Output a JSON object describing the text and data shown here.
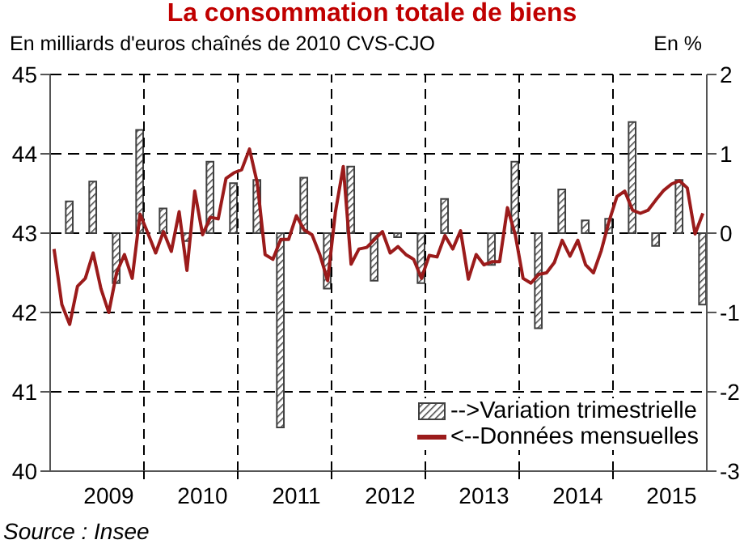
{
  "chart_data": {
    "type": "line",
    "title": "La consommation totale de biens",
    "ylabel": "En milliards d'euros chaînés de 2010 CVS-CJO",
    "y2label": "En %",
    "annotations": [
      "Source : Insee"
    ],
    "xlim": [
      "2009-01-01",
      "2016-01-01"
    ],
    "xticks": [
      {
        "value": "2009-08",
        "label": "2009"
      },
      {
        "value": "2010-08",
        "label": "2010"
      },
      {
        "value": "2011-08",
        "label": "2011"
      },
      {
        "value": "2012-08",
        "label": "2012"
      },
      {
        "value": "2013-08",
        "label": "2013"
      },
      {
        "value": "2014-08",
        "label": "2014"
      },
      {
        "value": "2015-08",
        "label": "2015"
      },
      {
        "value": "2010-01-01",
        "label": null
      },
      {
        "value": "2011-01-01",
        "label": null
      },
      {
        "value": "2012-01-01",
        "label": null
      },
      {
        "value": "2013-01-01",
        "label": null
      },
      {
        "value": "2014-01-01",
        "label": null
      },
      {
        "value": "2015-01-01",
        "label": null
      }
    ],
    "ylim": [
      40,
      45
    ],
    "yticks": [
      40,
      41,
      42,
      43,
      44,
      45
    ],
    "y2lim": [
      -3,
      2
    ],
    "y2ticks": [
      -3,
      -2,
      -1,
      0,
      1,
      2
    ],
    "grid": "y",
    "legend": "bottom right",
    "ref_lines": [
      {
        "axis": "x",
        "value": "2010-01-01",
        "color": "#000000",
        "line_style": "dashed"
      },
      {
        "axis": "x",
        "value": "2011-01-01",
        "color": "#000000",
        "line_style": "dashed"
      },
      {
        "axis": "x",
        "value": "2012-01-01",
        "color": "#000000",
        "line_style": "dashed"
      },
      {
        "axis": "x",
        "value": "2013-01-01",
        "color": "#000000",
        "line_style": "dashed"
      },
      {
        "axis": "x",
        "value": "2014-01-01",
        "color": "#000000",
        "line_style": "dashed"
      },
      {
        "axis": "x",
        "value": "2015-01-01",
        "color": "#000000",
        "line_style": "dashed"
      }
    ],
    "series": [
      {
        "name": "-->Variation trimestrielle",
        "type": "bar",
        "axis": "y2",
        "color": "#404040",
        "x": [
          "2009-03",
          "2009-06",
          "2009-09",
          "2009-12",
          "2010-03",
          "2010-06",
          "2010-09",
          "2010-12",
          "2011-03",
          "2011-06",
          "2011-09",
          "2011-12",
          "2012-03",
          "2012-06",
          "2012-09",
          "2012-12",
          "2013-03",
          "2013-06",
          "2013-09",
          "2013-12",
          "2014-03",
          "2014-06",
          "2014-09",
          "2014-12",
          "2015-03",
          "2015-06",
          "2015-09",
          "2015-12"
        ],
        "values": [
          0.4,
          0.65,
          -0.63,
          1.3,
          0.31,
          -0.1,
          0.9,
          0.63,
          0.67,
          -2.45,
          0.7,
          -0.7,
          0.84,
          -0.6,
          -0.05,
          -0.63,
          0.43,
          0,
          -0.4,
          0.9,
          -1.2,
          0.55,
          0.16,
          0.18,
          1.4,
          -0.16,
          0.67,
          -0.9
        ]
      },
      {
        "name": "<--Données mensuelles",
        "color": "#9b1b1b",
        "x": [
          "2009-01",
          "2009-02",
          "2009-03",
          "2009-04",
          "2009-05",
          "2009-06",
          "2009-07",
          "2009-08",
          "2009-09",
          "2009-10",
          "2009-11",
          "2009-12",
          "2010-01",
          "2010-02",
          "2010-03",
          "2010-04",
          "2010-05",
          "2010-06",
          "2010-07",
          "2010-08",
          "2010-09",
          "2010-10",
          "2010-11",
          "2010-12",
          "2011-01",
          "2011-02",
          "2011-03",
          "2011-04",
          "2011-05",
          "2011-06",
          "2011-07",
          "2011-08",
          "2011-09",
          "2011-10",
          "2011-11",
          "2011-12",
          "2012-01",
          "2012-02",
          "2012-03",
          "2012-04",
          "2012-05",
          "2012-06",
          "2012-07",
          "2012-08",
          "2012-09",
          "2012-10",
          "2012-11",
          "2012-12",
          "2013-01",
          "2013-02",
          "2013-03",
          "2013-04",
          "2013-05",
          "2013-06",
          "2013-07",
          "2013-08",
          "2013-09",
          "2013-10",
          "2013-11",
          "2013-12",
          "2014-01",
          "2014-02",
          "2014-03",
          "2014-04",
          "2014-05",
          "2014-06",
          "2014-07",
          "2014-08",
          "2014-09",
          "2014-10",
          "2014-11",
          "2014-12",
          "2015-01",
          "2015-02",
          "2015-03",
          "2015-04",
          "2015-05",
          "2015-06",
          "2015-07",
          "2015-08",
          "2015-09",
          "2015-10",
          "2015-11",
          "2015-12"
        ],
        "values": [
          42.8,
          42.1,
          41.85,
          42.33,
          42.43,
          42.75,
          42.3,
          42.0,
          42.5,
          42.73,
          42.43,
          43.24,
          43.0,
          42.75,
          43.02,
          42.77,
          43.27,
          42.53,
          43.53,
          42.98,
          43.2,
          43.18,
          43.69,
          43.76,
          43.8,
          44.06,
          43.63,
          42.73,
          42.67,
          42.92,
          42.92,
          43.22,
          43.04,
          42.98,
          42.73,
          42.4,
          43.27,
          43.84,
          42.61,
          42.8,
          42.82,
          42.92,
          43.02,
          42.75,
          42.83,
          42.73,
          42.67,
          42.43,
          42.72,
          42.7,
          42.97,
          42.8,
          43.03,
          42.42,
          42.73,
          42.6,
          42.64,
          42.64,
          43.32,
          42.98,
          42.43,
          42.37,
          42.48,
          42.5,
          42.63,
          42.91,
          42.71,
          42.91,
          42.6,
          42.5,
          42.78,
          43.15,
          43.46,
          43.53,
          43.29,
          43.25,
          43.29,
          43.42,
          43.54,
          43.62,
          43.66,
          43.57,
          42.99,
          43.25
        ]
      }
    ]
  }
}
